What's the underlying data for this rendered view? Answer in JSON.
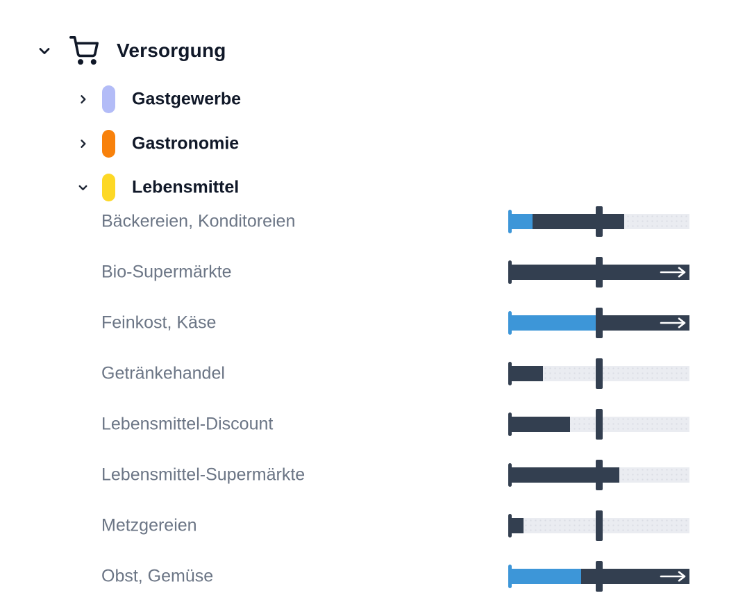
{
  "colors": {
    "accent_blue": "#3d96d8",
    "dark_navy": "#333f50",
    "track_gray": "#eaecf1",
    "label_gray": "#6b7585",
    "heading": "#101828"
  },
  "icons": {
    "root": "shopping-cart-icon",
    "expanded": "chevron-down-icon",
    "collapsed": "chevron-right-icon",
    "overflow": "right-arrow-icon"
  },
  "tree": {
    "root": {
      "label": "Versorgung",
      "expanded": true
    },
    "categories": [
      {
        "label": "Gastgewerbe",
        "color": "#b3bcf7",
        "expanded": false
      },
      {
        "label": "Gastronomie",
        "color": "#f8810b",
        "expanded": false
      },
      {
        "label": "Lebensmittel",
        "color": "#fdd825",
        "expanded": true
      }
    ]
  },
  "items": [
    {
      "label": "Bäckereien, Konditoreien",
      "blue_pct": 13,
      "dark_pct": 64,
      "marker_pct": 50,
      "overflow": false
    },
    {
      "label": "Bio-Supermärkte",
      "blue_pct": 0,
      "dark_pct": 100,
      "marker_pct": 50,
      "overflow": true
    },
    {
      "label": "Feinkost, Käse",
      "blue_pct": 50,
      "dark_pct": 100,
      "marker_pct": 50,
      "overflow": true
    },
    {
      "label": "Getränkehandel",
      "blue_pct": 0,
      "dark_pct": 19,
      "marker_pct": 50,
      "overflow": false
    },
    {
      "label": "Lebensmittel-Discount",
      "blue_pct": 0,
      "dark_pct": 34,
      "marker_pct": 50,
      "overflow": false
    },
    {
      "label": "Lebensmittel-Supermärkte",
      "blue_pct": 0,
      "dark_pct": 61,
      "marker_pct": 50,
      "overflow": false
    },
    {
      "label": "Metzgereien",
      "blue_pct": 0,
      "dark_pct": 8,
      "marker_pct": 50,
      "overflow": false
    },
    {
      "label": "Obst, Gemüse",
      "blue_pct": 40,
      "dark_pct": 100,
      "marker_pct": 50,
      "overflow": true
    }
  ]
}
